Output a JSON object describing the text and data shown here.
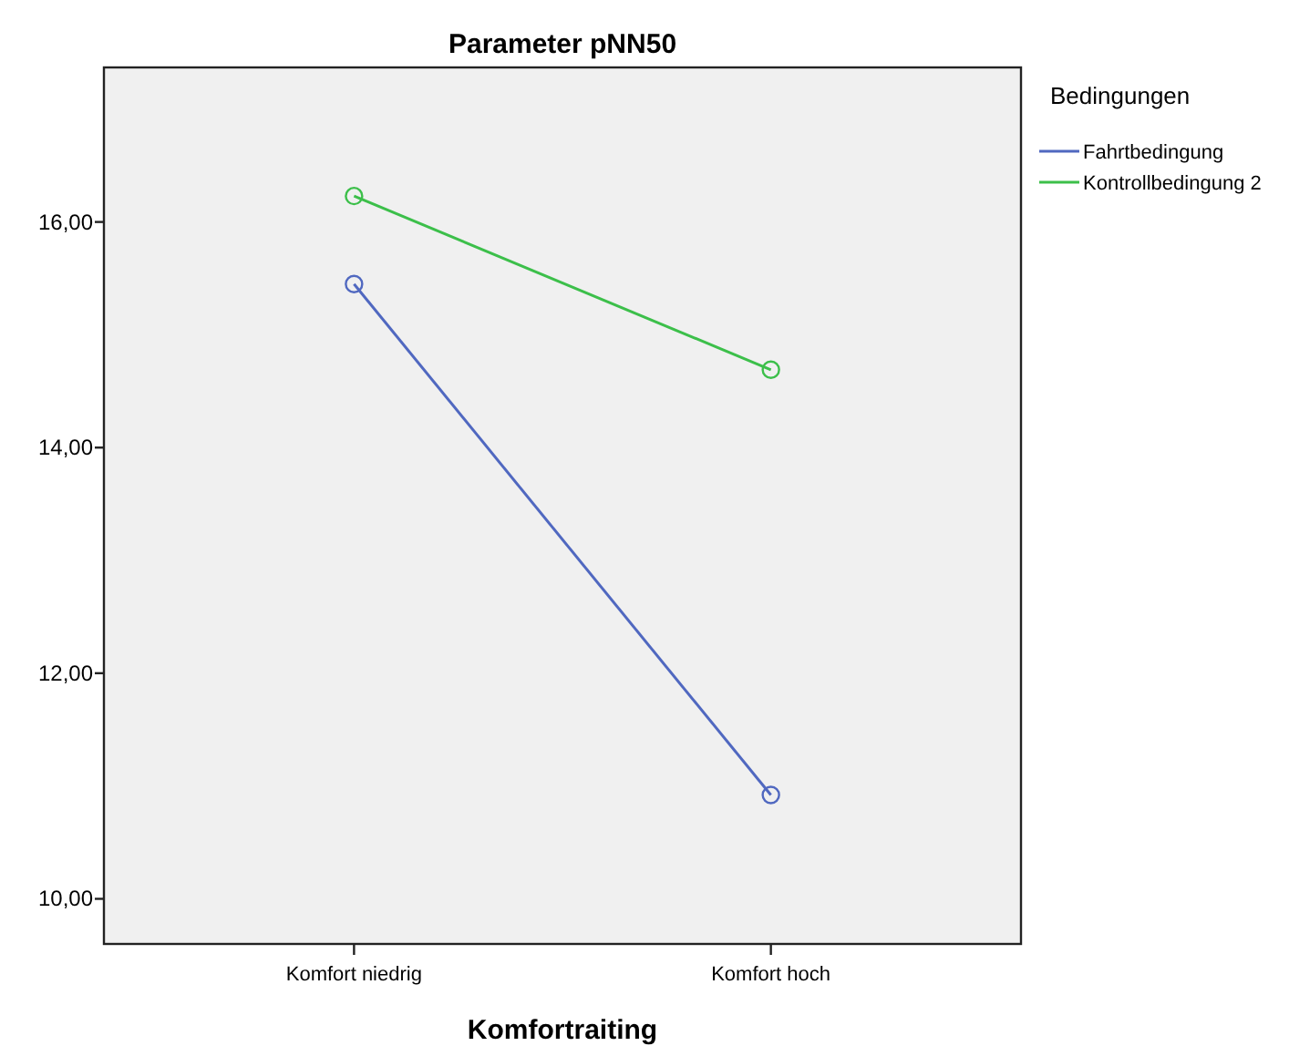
{
  "chart_data": {
    "type": "line",
    "title": "Parameter pNN50",
    "xlabel": "Komfortraiting",
    "legend_title": "Bedingungen",
    "categories": [
      "Komfort niedrig",
      "Komfort hoch"
    ],
    "series": [
      {
        "name": "Fahrtbedingung",
        "color": "#5068c0",
        "values": [
          15.45,
          10.92
        ]
      },
      {
        "name": "Kontrollbedingung 2",
        "color": "#3cbf4a",
        "values": [
          16.23,
          14.69
        ]
      }
    ],
    "ylim": [
      9.6,
      17.37
    ],
    "yticks": [
      {
        "value": 10,
        "label": "10,00"
      },
      {
        "value": 12,
        "label": "12,00"
      },
      {
        "value": 14,
        "label": "14,00"
      },
      {
        "value": 16,
        "label": "16,00"
      }
    ],
    "grid": false,
    "legend": "top right",
    "marker": "circle",
    "line_style": "solid"
  }
}
